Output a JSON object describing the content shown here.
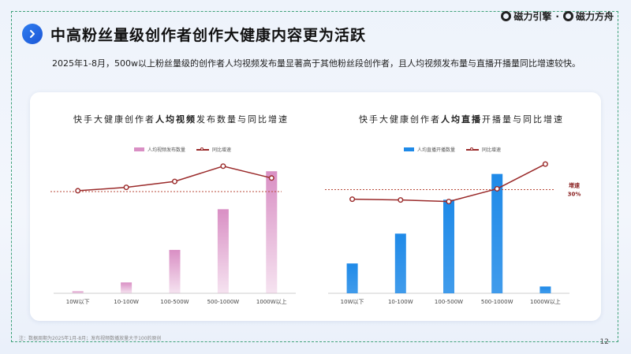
{
  "header": {
    "title": "中高粉丝量级创作者创作大健康内容更为活跃",
    "subtitle": "2025年1-8月，500w以上粉丝量级的创作者人均视频发布量显著高于其他粉丝段创作者，且人均视频发布量与直播开播量同比增速较快。"
  },
  "logo": {
    "brand1": "磁力引擎",
    "separator": "·",
    "brand2": "磁力方舟"
  },
  "chart_data": [
    {
      "type": "bar",
      "title": {
        "pre": "快手大健康创作者",
        "bold": "人均视频",
        "post": "发布数量与同比增速"
      },
      "categories": [
        "10W以下",
        "10-100W",
        "100-500W",
        "500-1000W",
        "1000W以上"
      ],
      "series": [
        {
          "name": "人均视频发布数量",
          "kind": "bar",
          "color": "#d98fc4",
          "values": [
            1.5,
            8,
            32,
            62,
            90
          ]
        },
        {
          "name": "同比增速",
          "kind": "line",
          "color": "#9a2a2a",
          "values": [
            21,
            25,
            32,
            50,
            36
          ]
        }
      ],
      "bar_ylim": [
        0,
        100
      ],
      "line_ylim": [
        -100,
        60
      ],
      "reference_line": {
        "value": 20,
        "color": "#b84a3a"
      },
      "legend": "top-center"
    },
    {
      "type": "bar",
      "title": {
        "pre": "快手大健康创作者",
        "bold": "人均直播",
        "post": "开播量与同比增速"
      },
      "categories": [
        "10W以下",
        "10-100W",
        "100-500W",
        "500-1000W",
        "1000W以上"
      ],
      "series": [
        {
          "name": "人均直播开播数量",
          "kind": "bar",
          "color": "#1f8ae8",
          "values": [
            22,
            44,
            69,
            88,
            5
          ]
        },
        {
          "name": "同比增速",
          "kind": "line",
          "color": "#9a2a2a",
          "values": [
            18,
            17,
            15,
            31,
            62
          ]
        }
      ],
      "bar_ylim": [
        0,
        100
      ],
      "line_ylim": [
        -100,
        70
      ],
      "reference_line": {
        "value": 30,
        "color": "#b84a3a",
        "label_top": "增速",
        "label_bottom": "30%"
      },
      "legend": "top-center"
    }
  ],
  "footnote": "注：数据周期为2025年1月-8月；发布视频数播放量大于100的原创",
  "page_number": "12"
}
